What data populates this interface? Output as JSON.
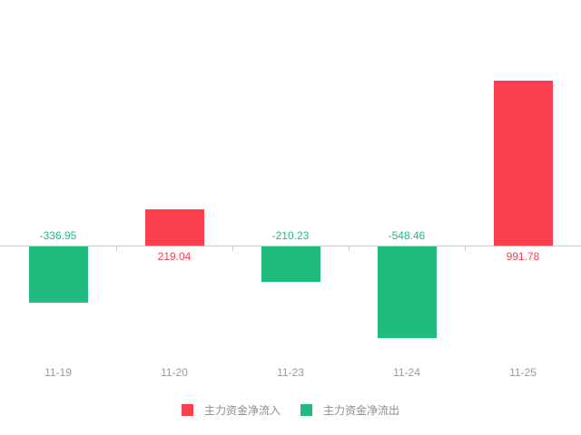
{
  "chart_data": {
    "type": "bar",
    "categories": [
      "11-19",
      "11-20",
      "11-23",
      "11-24",
      "11-25"
    ],
    "values": [
      -336.95,
      219.04,
      -210.23,
      -548.46,
      991.78
    ],
    "value_labels": [
      "-336.95",
      "219.04",
      "-210.23",
      "-548.46",
      "991.78"
    ],
    "title": "",
    "xlabel": "",
    "ylabel": "",
    "ylim": [
      -600,
      1050
    ],
    "grid": false,
    "legend_position": "bottom",
    "legend": [
      {
        "label": "主力资金净流入",
        "color": "#fa3e4e"
      },
      {
        "label": "主力资金净流出",
        "color": "#20bb7e"
      }
    ],
    "colors": {
      "positive": "#fa3e4e",
      "negative": "#20bb7e",
      "axis": "#cccccc",
      "x_label": "#999999",
      "legend_text": "#8e8e8e",
      "background": "#ffffff"
    }
  }
}
